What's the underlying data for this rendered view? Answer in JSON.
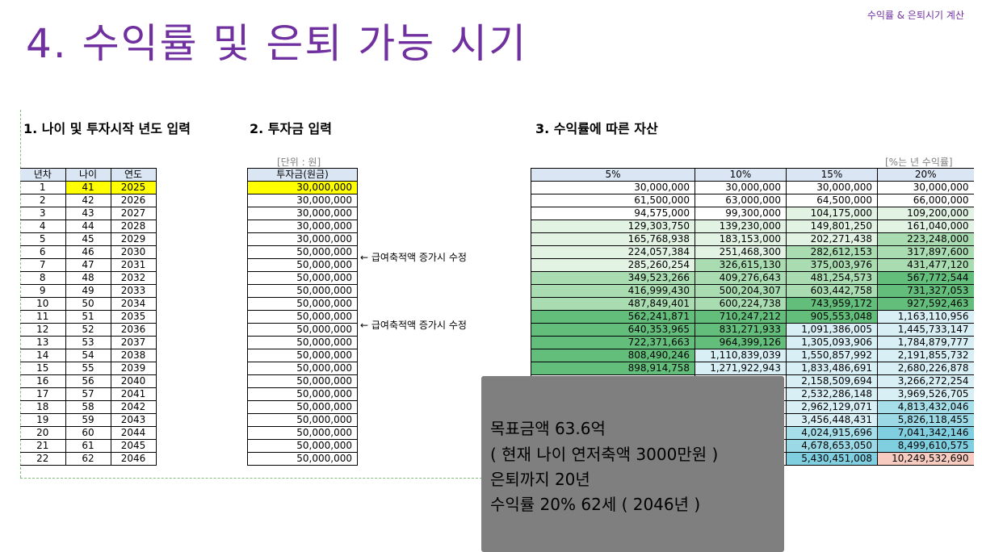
{
  "header": {
    "top_right": "수익률 & 은퇴시기 계산",
    "title": "4. 수익률 및 은퇴 가능 시기"
  },
  "sections": {
    "s1": "1. 나이 및 투자시작 년도 입력",
    "s2": "2. 투자금 입력",
    "s3": "3. 수익률에 따른 자산"
  },
  "units": {
    "invest": "[단위 : 원]",
    "rates": "[%는 년 수익률]"
  },
  "table_years": {
    "headers": [
      "년차",
      "나이",
      "연도"
    ],
    "rows": [
      [
        "1",
        "41",
        "2025"
      ],
      [
        "2",
        "42",
        "2026"
      ],
      [
        "3",
        "43",
        "2027"
      ],
      [
        "4",
        "44",
        "2028"
      ],
      [
        "5",
        "45",
        "2029"
      ],
      [
        "6",
        "46",
        "2030"
      ],
      [
        "7",
        "47",
        "2031"
      ],
      [
        "8",
        "48",
        "2032"
      ],
      [
        "9",
        "49",
        "2033"
      ],
      [
        "10",
        "50",
        "2034"
      ],
      [
        "11",
        "51",
        "2035"
      ],
      [
        "12",
        "52",
        "2036"
      ],
      [
        "13",
        "53",
        "2037"
      ],
      [
        "14",
        "54",
        "2038"
      ],
      [
        "15",
        "55",
        "2039"
      ],
      [
        "16",
        "56",
        "2040"
      ],
      [
        "17",
        "57",
        "2041"
      ],
      [
        "18",
        "58",
        "2042"
      ],
      [
        "19",
        "59",
        "2043"
      ],
      [
        "20",
        "60",
        "2044"
      ],
      [
        "21",
        "61",
        "2045"
      ],
      [
        "22",
        "62",
        "2046"
      ]
    ]
  },
  "table_invest": {
    "header": "투자금(원금)",
    "rows": [
      "30,000,000",
      "30,000,000",
      "30,000,000",
      "30,000,000",
      "30,000,000",
      "50,000,000",
      "50,000,000",
      "50,000,000",
      "50,000,000",
      "50,000,000",
      "50,000,000",
      "50,000,000",
      "50,000,000",
      "50,000,000",
      "50,000,000",
      "50,000,000",
      "50,000,000",
      "50,000,000",
      "50,000,000",
      "50,000,000",
      "50,000,000",
      "50,000,000"
    ]
  },
  "notes": [
    "← 급여축적액 증가시 수정",
    "← 급여축적액 증가시 수정"
  ],
  "table_assets": {
    "headers": [
      "5%",
      "10%",
      "15%",
      "20%"
    ],
    "rows": [
      [
        "30,000,000",
        "30,000,000",
        "30,000,000",
        "30,000,000"
      ],
      [
        "61,500,000",
        "63,000,000",
        "64,500,000",
        "66,000,000"
      ],
      [
        "94,575,000",
        "99,300,000",
        "104,175,000",
        "109,200,000"
      ],
      [
        "129,303,750",
        "139,230,000",
        "149,801,250",
        "161,040,000"
      ],
      [
        "165,768,938",
        "183,153,000",
        "202,271,438",
        "223,248,000"
      ],
      [
        "224,057,384",
        "251,468,300",
        "282,612,153",
        "317,897,600"
      ],
      [
        "285,260,254",
        "326,615,130",
        "375,003,976",
        "431,477,120"
      ],
      [
        "349,523,266",
        "409,276,643",
        "481,254,573",
        "567,772,544"
      ],
      [
        "416,999,430",
        "500,204,307",
        "603,442,758",
        "731,327,053"
      ],
      [
        "487,849,401",
        "600,224,738",
        "743,959,172",
        "927,592,463"
      ],
      [
        "562,241,871",
        "710,247,212",
        "905,553,048",
        "1,163,110,956"
      ],
      [
        "640,353,965",
        "831,271,933",
        "1,091,386,005",
        "1,445,733,147"
      ],
      [
        "722,371,663",
        "964,399,126",
        "1,305,093,906",
        "1,784,879,777"
      ],
      [
        "808,490,246",
        "1,110,839,039",
        "1,550,857,992",
        "2,191,855,732"
      ],
      [
        "898,914,758",
        "1,271,922,943",
        "1,833,486,691",
        "2,680,226,878"
      ],
      [
        "",
        "",
        "2,158,509,694",
        "3,266,272,254"
      ],
      [
        "",
        "",
        "2,532,286,148",
        "3,969,526,705"
      ],
      [
        "",
        "",
        "2,962,129,071",
        "4,813,432,046"
      ],
      [
        "",
        "",
        "3,456,448,431",
        "5,826,118,455"
      ],
      [
        "",
        "",
        "4,024,915,696",
        "7,041,342,146"
      ],
      [
        "",
        "",
        "4,678,653,050",
        "8,499,610,575"
      ],
      [
        "",
        "",
        "5,430,451,008",
        "10,249,532,690"
      ]
    ]
  },
  "callout": {
    "lines": [
      "목표금액 63.6억",
      "( 현재 나이 연저축액 3000만원 )",
      "은퇴까지 20년",
      "수익률 20% 62세 ( 2046년 )"
    ]
  },
  "colors": {
    "accent": "#7030a0",
    "header_fill": "#dbe6f5",
    "input_fill": "#ffff00",
    "green_light": "#e2f3e4",
    "green_mid": "#a9dcb1",
    "green_dark": "#63be7b",
    "blue_light": "#d8eff5",
    "blue_dark": "#7fcfe0",
    "peak_fill": "#f8cbc0",
    "callout_fill": "#7f7f7f"
  }
}
